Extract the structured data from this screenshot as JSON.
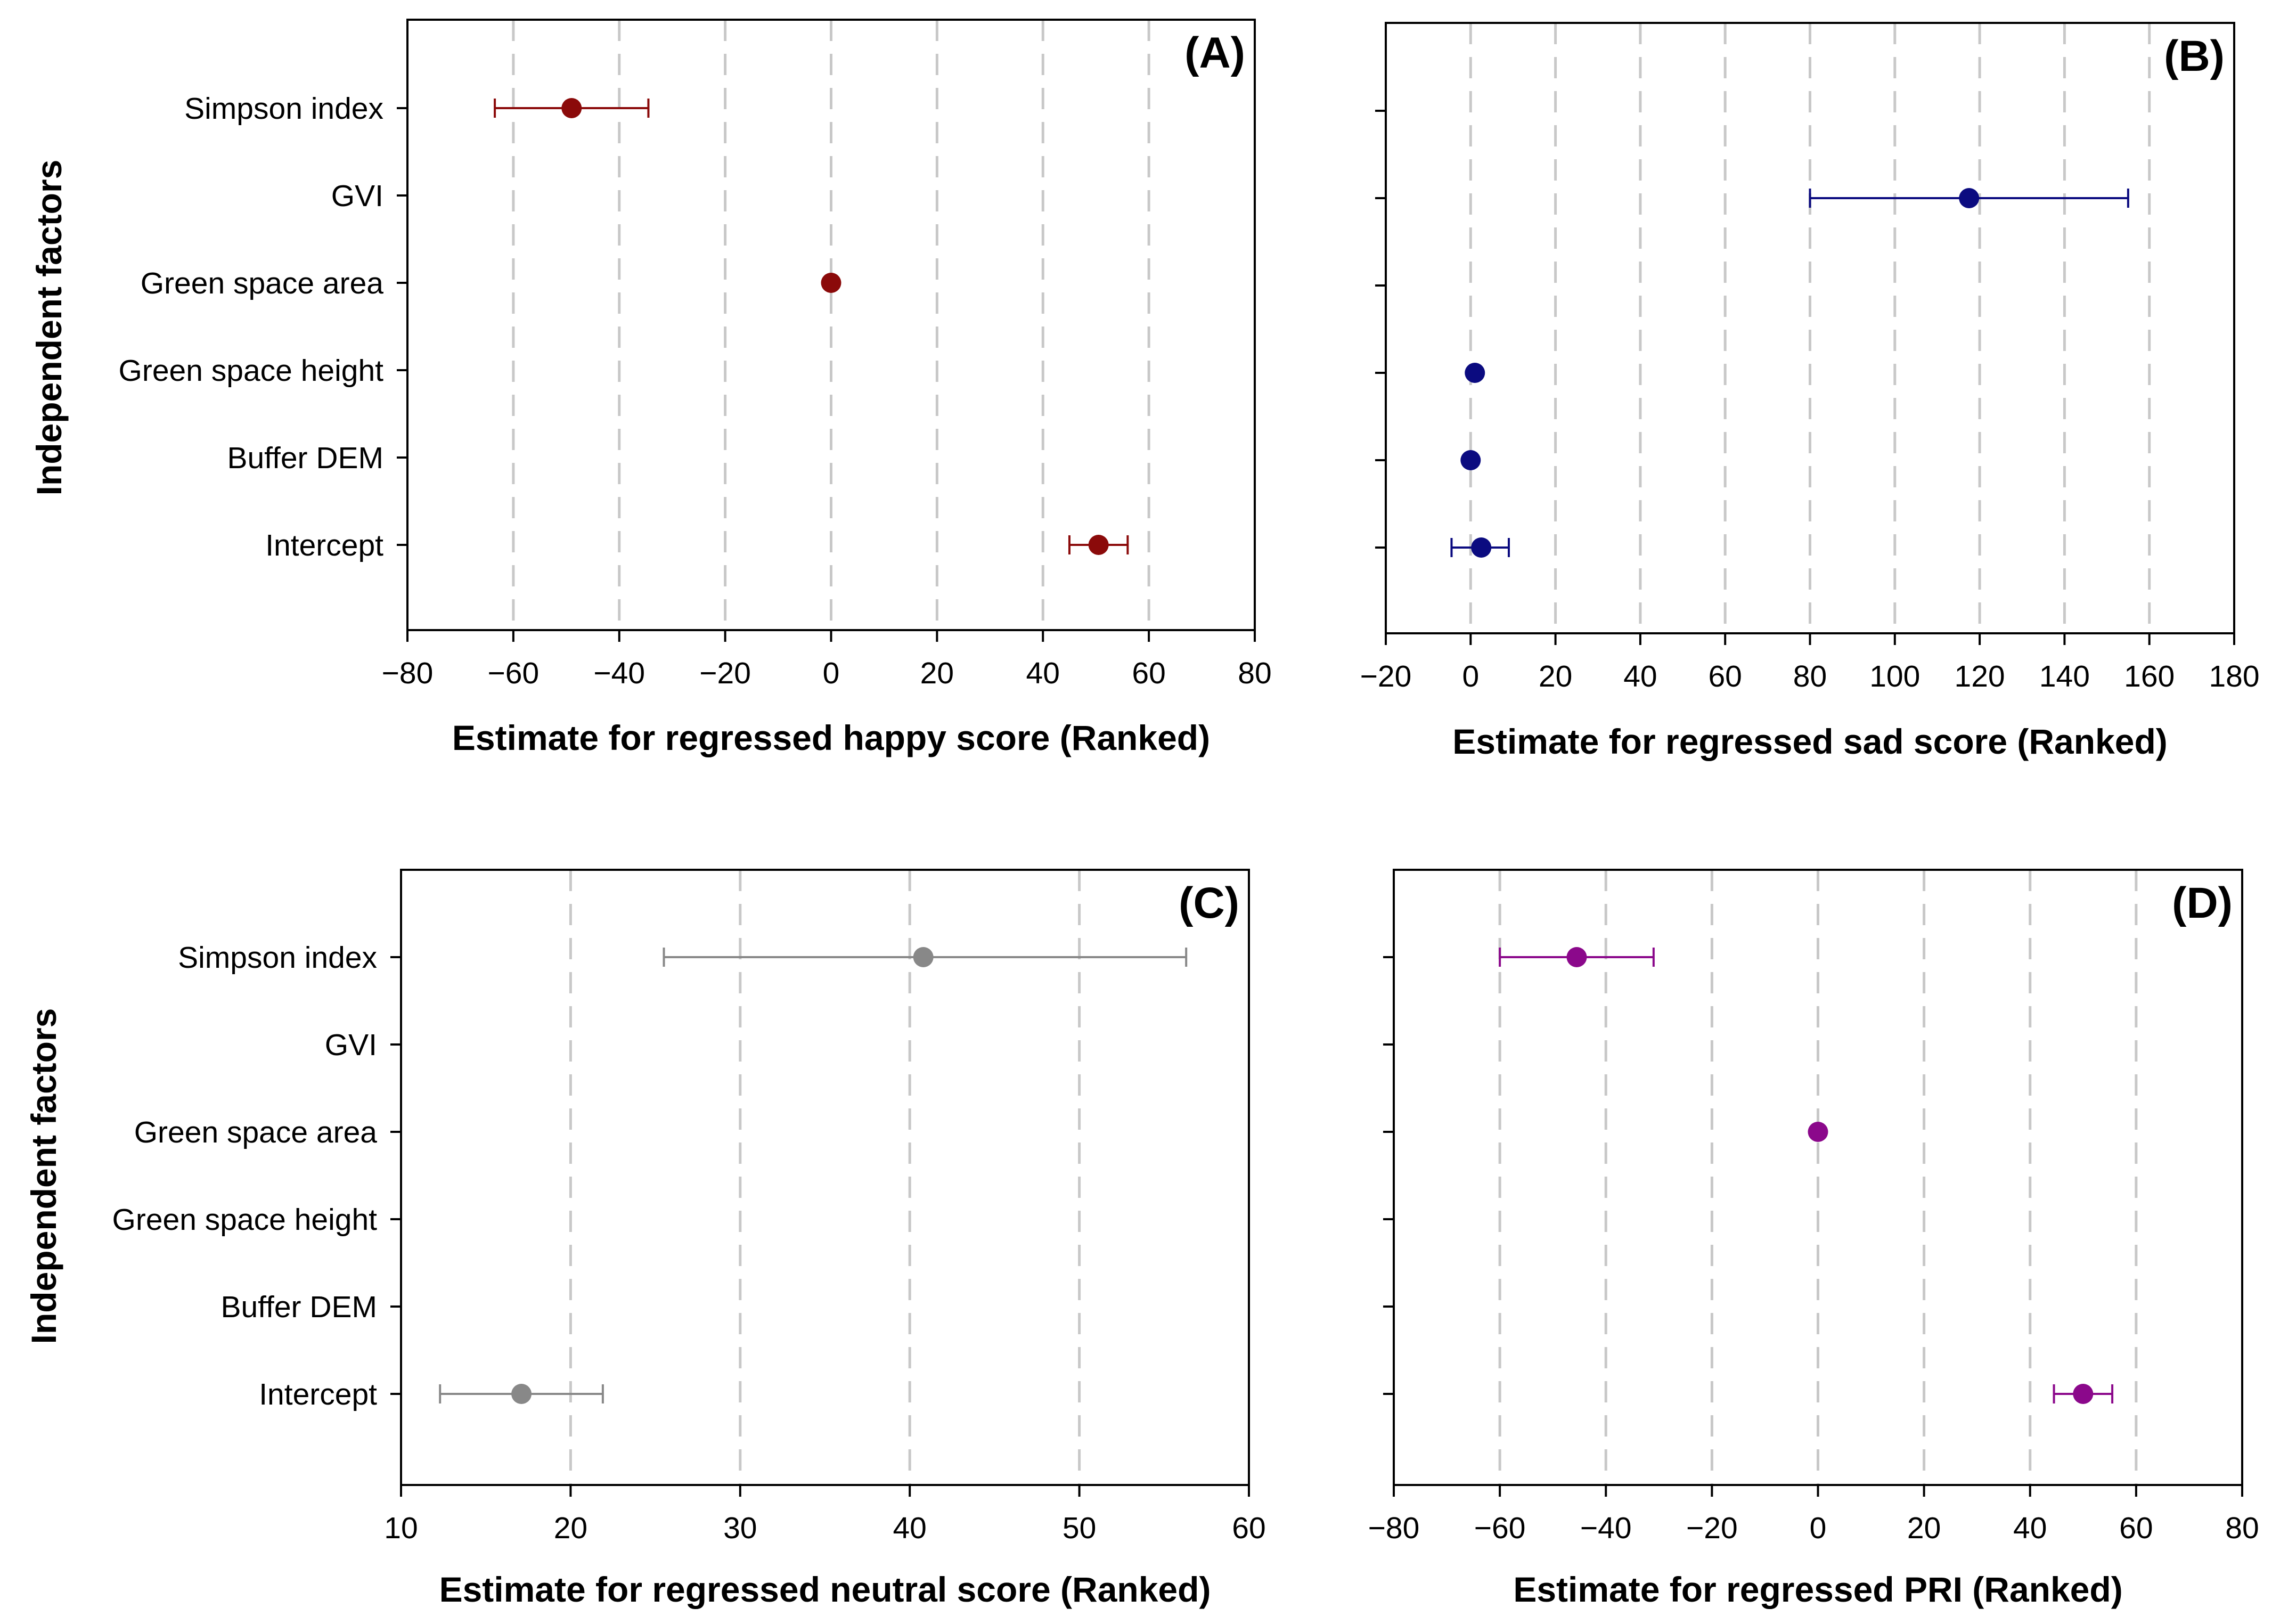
{
  "ylabel": "Independent factors",
  "categories": [
    "Simpson index",
    "GVI",
    "Green space area",
    "Green space height",
    "Buffer DEM",
    "Intercept"
  ],
  "chart_data": [
    {
      "panel": "(A)",
      "type": "scatter",
      "title": "",
      "xlabel": "Estimate for regressed happy score (Ranked)",
      "ylabel": "Independent factors",
      "xlim": [
        -80,
        80
      ],
      "xticks": [
        -80,
        -60,
        -40,
        -20,
        0,
        20,
        40,
        60,
        80
      ],
      "grid": "vertical dashed",
      "color": "#8b0a0a",
      "show_category_labels": true,
      "categories": [
        "Simpson index",
        "GVI",
        "Green space area",
        "Green space height",
        "Buffer DEM",
        "Intercept"
      ],
      "points": [
        {
          "category": "Simpson index",
          "estimate": -49,
          "ci_low": -63.5,
          "ci_high": -34.5
        },
        {
          "category": "Green space area",
          "estimate": 0,
          "ci_low": null,
          "ci_high": null
        },
        {
          "category": "Intercept",
          "estimate": 50.5,
          "ci_low": 45,
          "ci_high": 56
        }
      ]
    },
    {
      "panel": "(B)",
      "type": "scatter",
      "title": "",
      "xlabel": "Estimate for regressed sad score (Ranked)",
      "ylabel": "",
      "xlim": [
        -20,
        180
      ],
      "xticks": [
        -20,
        0,
        20,
        40,
        60,
        80,
        100,
        120,
        140,
        160,
        180
      ],
      "grid": "vertical dashed",
      "color": "#0b0b80",
      "show_category_labels": false,
      "categories": [
        "Simpson index",
        "GVI",
        "Green space area",
        "Green space height",
        "Buffer DEM",
        "Intercept"
      ],
      "points": [
        {
          "category": "GVI",
          "estimate": 117.5,
          "ci_low": 80,
          "ci_high": 155
        },
        {
          "category": "Green space height",
          "estimate": 1,
          "ci_low": null,
          "ci_high": null
        },
        {
          "category": "Buffer DEM",
          "estimate": 0,
          "ci_low": null,
          "ci_high": null
        },
        {
          "category": "Intercept",
          "estimate": 2.5,
          "ci_low": -4.5,
          "ci_high": 9
        }
      ]
    },
    {
      "panel": "(C)",
      "type": "scatter",
      "title": "",
      "xlabel": "Estimate for regressed neutral score (Ranked)",
      "ylabel": "Independent factors",
      "xlim": [
        10,
        60
      ],
      "xticks": [
        10,
        20,
        30,
        40,
        50,
        60
      ],
      "grid": "vertical dashed",
      "color": "#888888",
      "show_category_labels": true,
      "categories": [
        "Simpson index",
        "GVI",
        "Green space area",
        "Green space height",
        "Buffer DEM",
        "Intercept"
      ],
      "points": [
        {
          "category": "Simpson index",
          "estimate": 40.8,
          "ci_low": 25.5,
          "ci_high": 56.3
        },
        {
          "category": "Intercept",
          "estimate": 17.1,
          "ci_low": 12.3,
          "ci_high": 21.9
        }
      ]
    },
    {
      "panel": "(D)",
      "type": "scatter",
      "title": "",
      "xlabel": "Estimate for regressed PRI (Ranked)",
      "ylabel": "",
      "xlim": [
        -80,
        80
      ],
      "xticks": [
        -80,
        -60,
        -40,
        -20,
        0,
        20,
        40,
        60,
        80
      ],
      "grid": "vertical dashed",
      "color": "#8b088b",
      "show_category_labels": false,
      "categories": [
        "Simpson index",
        "GVI",
        "Green space area",
        "Green space height",
        "Buffer DEM",
        "Intercept"
      ],
      "points": [
        {
          "category": "Simpson index",
          "estimate": -45.5,
          "ci_low": -60,
          "ci_high": -31
        },
        {
          "category": "Green space area",
          "estimate": 0,
          "ci_low": null,
          "ci_high": null
        },
        {
          "category": "Intercept",
          "estimate": 50,
          "ci_low": 44.5,
          "ci_high": 55.5
        }
      ]
    }
  ]
}
